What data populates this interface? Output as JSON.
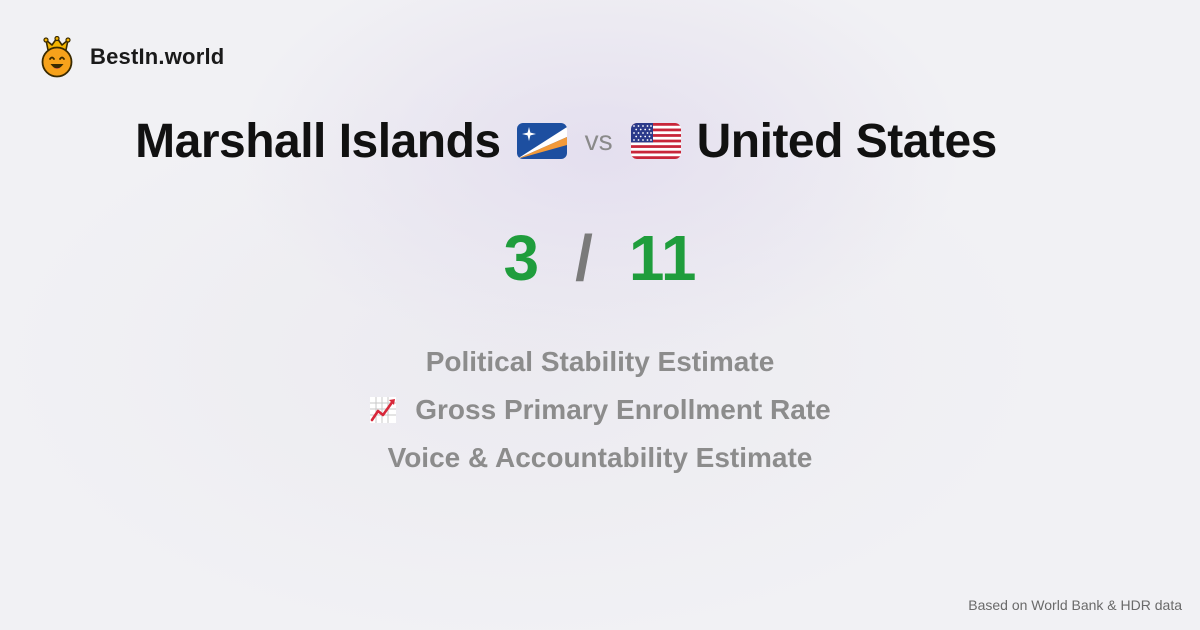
{
  "brand": {
    "name": "BestIn.world",
    "icon": "smiling-crown-face-icon"
  },
  "comparison": {
    "left_country": "Marshall Islands",
    "left_flag": "marshall-islands-flag-icon",
    "separator": "vs",
    "right_country": "United States",
    "right_flag": "united-states-flag-icon"
  },
  "score": {
    "left": "3",
    "separator": "/",
    "right": "11",
    "color": "#1f9d3c"
  },
  "metrics": [
    {
      "label": "Political Stability Estimate",
      "icon": ""
    },
    {
      "label": "Gross Primary Enrollment Rate",
      "icon": "chart-increasing-icon"
    },
    {
      "label": "Voice & Accountability Estimate",
      "icon": ""
    }
  ],
  "footer": {
    "text": "Based on World Bank & HDR data"
  }
}
